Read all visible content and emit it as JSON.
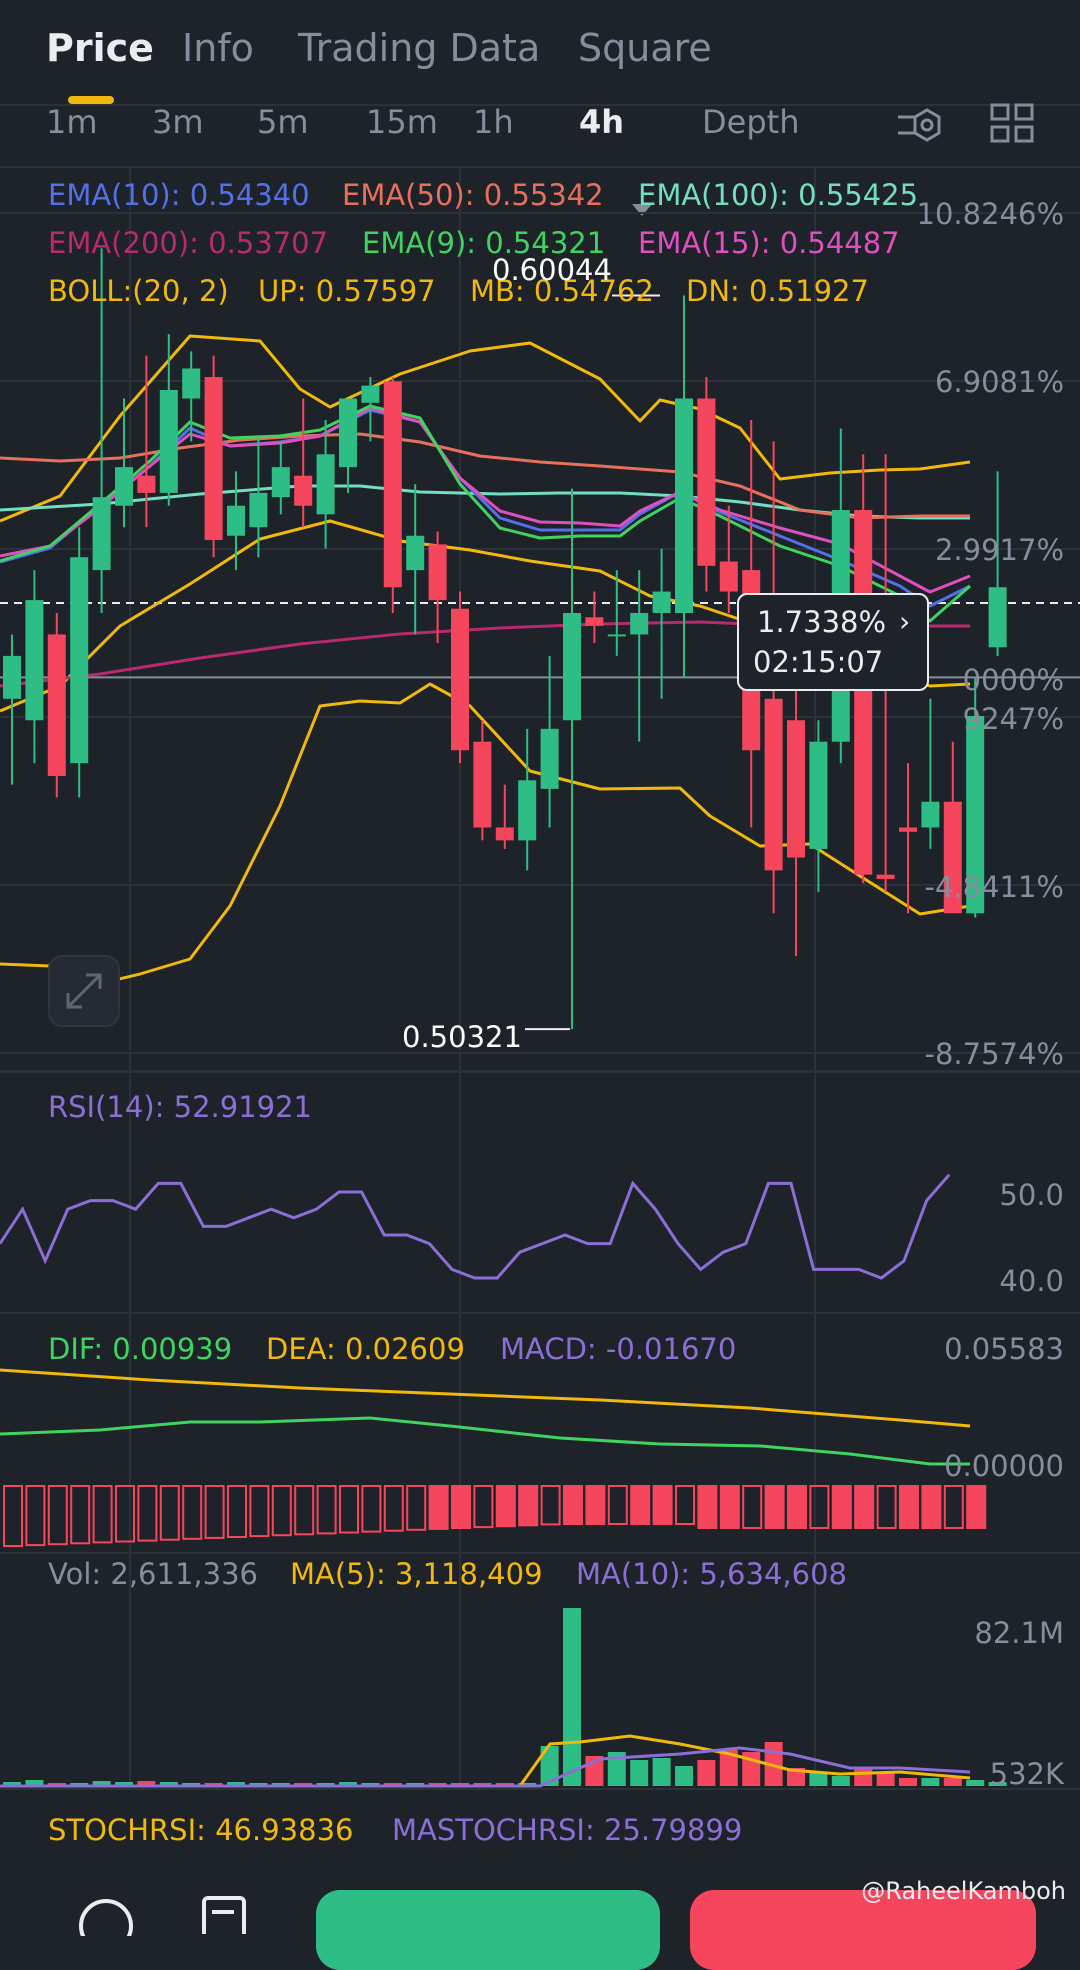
{
  "tabs": [
    "Price",
    "Info",
    "Trading Data",
    "Square"
  ],
  "timeframes": [
    "1m",
    "3m",
    "5m",
    "15m",
    "1h",
    "4h",
    "Depth"
  ],
  "active_timeframe": "4h",
  "indicators": {
    "ema10": "EMA(10): 0.54340",
    "ema50": "EMA(50): 0.55342",
    "ema100": "EMA(100): 0.55425",
    "ema200": "EMA(200): 0.53707",
    "ema9": "EMA(9): 0.54321",
    "ema15": "EMA(15): 0.54487",
    "boll": "BOLL:(20, 2)",
    "boll_up": "UP: 0.57597",
    "boll_mb": "MB: 0.54762",
    "boll_dn": "DN: 0.51927"
  },
  "price_axis": [
    "10.8246%",
    "6.9081%",
    "2.9917%",
    "0000%",
    "9247%",
    "-4.8411%",
    "-8.7574%"
  ],
  "price_high_label": "0.60044",
  "price_low_label": "0.50321",
  "countdown": {
    "percent": "1.7338%",
    "time": "02:15:07"
  },
  "rsi": {
    "label": "RSI(14): 52.91921",
    "axis": [
      "50.0",
      "40.0"
    ]
  },
  "macd": {
    "dif": "DIF: 0.00939",
    "dea": "DEA: 0.02609",
    "macd": "MACD: -0.01670",
    "axis": [
      "0.05583",
      "0.00000"
    ]
  },
  "volume": {
    "vol": "Vol: 2,611,336",
    "ma5": "MA(5): 3,118,409",
    "ma10": "MA(10): 5,634,608",
    "axis": [
      "82.1M",
      "532K"
    ]
  },
  "stochrsi": {
    "stoch": "STOCHRSI: 46.93836",
    "mastoch": "MASTOCHRSI: 25.79899"
  },
  "credit": "@RaheelKamboh",
  "colors": {
    "up": "#2ebd85",
    "down": "#f6465d",
    "boll": "#f0b90b",
    "ema10": "#5470e8",
    "ema50": "#e8705a",
    "ema100": "#72dfc0",
    "ema200": "#b8296e",
    "ema9": "#3fd35f",
    "ema15": "#e04fc0",
    "rsi": "#8c6fd6"
  },
  "chart_data": {
    "type": "candlestick",
    "y_range_pct": [
      -8.7574,
      10.8246
    ],
    "candles_pct": [
      [
        -0.5,
        0.5,
        -2.5,
        1.0
      ],
      [
        -1.0,
        1.8,
        -2.0,
        2.5
      ],
      [
        1.0,
        -2.3,
        -2.8,
        1.5
      ],
      [
        -2.0,
        2.8,
        -2.8,
        3.5
      ],
      [
        2.5,
        4.2,
        1.5,
        10.0
      ],
      [
        4.0,
        4.9,
        3.5,
        6.5
      ],
      [
        4.7,
        4.3,
        3.5,
        7.5
      ],
      [
        4.3,
        6.7,
        4.0,
        8.0
      ],
      [
        6.5,
        7.2,
        5.5,
        7.6
      ],
      [
        7.0,
        3.2,
        2.8,
        7.5
      ],
      [
        3.3,
        4.0,
        2.5,
        4.8
      ],
      [
        3.5,
        4.3,
        2.8,
        5.6
      ],
      [
        4.2,
        4.9,
        3.8,
        5.5
      ],
      [
        4.7,
        4.0,
        3.5,
        6.5
      ],
      [
        3.8,
        5.2,
        3.0,
        6.0
      ],
      [
        4.9,
        6.5,
        4.3,
        6.5
      ],
      [
        6.4,
        6.8,
        5.5,
        7.0
      ],
      [
        6.9,
        2.1,
        1.5,
        7.0
      ],
      [
        2.5,
        3.3,
        1.0,
        4.5
      ],
      [
        3.1,
        1.8,
        0.8,
        3.4
      ],
      [
        1.6,
        -1.7,
        -2.0,
        2.0
      ],
      [
        -1.5,
        -3.5,
        -3.8,
        -1.0
      ],
      [
        -3.5,
        -3.8,
        -4.0,
        -2.5
      ],
      [
        -3.8,
        -2.4,
        -4.5,
        -1.2
      ],
      [
        -2.6,
        -1.2,
        -3.5,
        0.5
      ],
      [
        -1.0,
        1.5,
        -8.2,
        4.4
      ],
      [
        1.4,
        1.2,
        0.8,
        2.0
      ],
      [
        1.0,
        1.0,
        0.5,
        2.5
      ],
      [
        1.0,
        1.5,
        -1.5,
        2.5
      ],
      [
        1.5,
        2.0,
        -0.5,
        3.0
      ],
      [
        1.5,
        6.5,
        0.0,
        8.9
      ],
      [
        6.5,
        2.6,
        2.0,
        7.0
      ],
      [
        2.7,
        2.0,
        1.5,
        4.0
      ],
      [
        2.5,
        -1.7,
        -3.5,
        6.0
      ],
      [
        -0.5,
        -4.5,
        -5.5,
        5.5
      ],
      [
        -1.0,
        -4.2,
        -6.5,
        0.0
      ],
      [
        -4.0,
        -1.5,
        -5.0,
        -1.0
      ],
      [
        -1.5,
        3.9,
        -2.0,
        5.8
      ],
      [
        3.9,
        -4.6,
        -4.8,
        5.2
      ],
      [
        -4.6,
        -4.7,
        -5.0,
        5.2
      ],
      [
        -3.5,
        -3.6,
        -5.5,
        -2.0
      ],
      [
        -3.5,
        -2.9,
        -4.0,
        -0.5
      ],
      [
        -2.9,
        -5.5,
        -5.5,
        -1.5
      ],
      [
        -5.5,
        -0.9,
        -5.6,
        0.0
      ],
      [
        0.7,
        2.1,
        0.5,
        4.8
      ]
    ],
    "rsi_values": [
      44,
      48,
      42,
      48,
      49,
      49,
      48,
      51,
      51,
      46,
      46,
      47,
      48,
      47,
      48,
      50,
      50,
      45,
      45,
      44,
      41,
      40,
      40,
      43,
      44,
      45,
      44,
      44,
      51,
      48,
      44,
      41,
      43,
      44,
      51,
      51,
      41,
      41,
      41,
      40,
      42,
      49,
      52
    ],
    "volume_ma_note": "volume bars mostly tiny with spike near candle 25"
  }
}
